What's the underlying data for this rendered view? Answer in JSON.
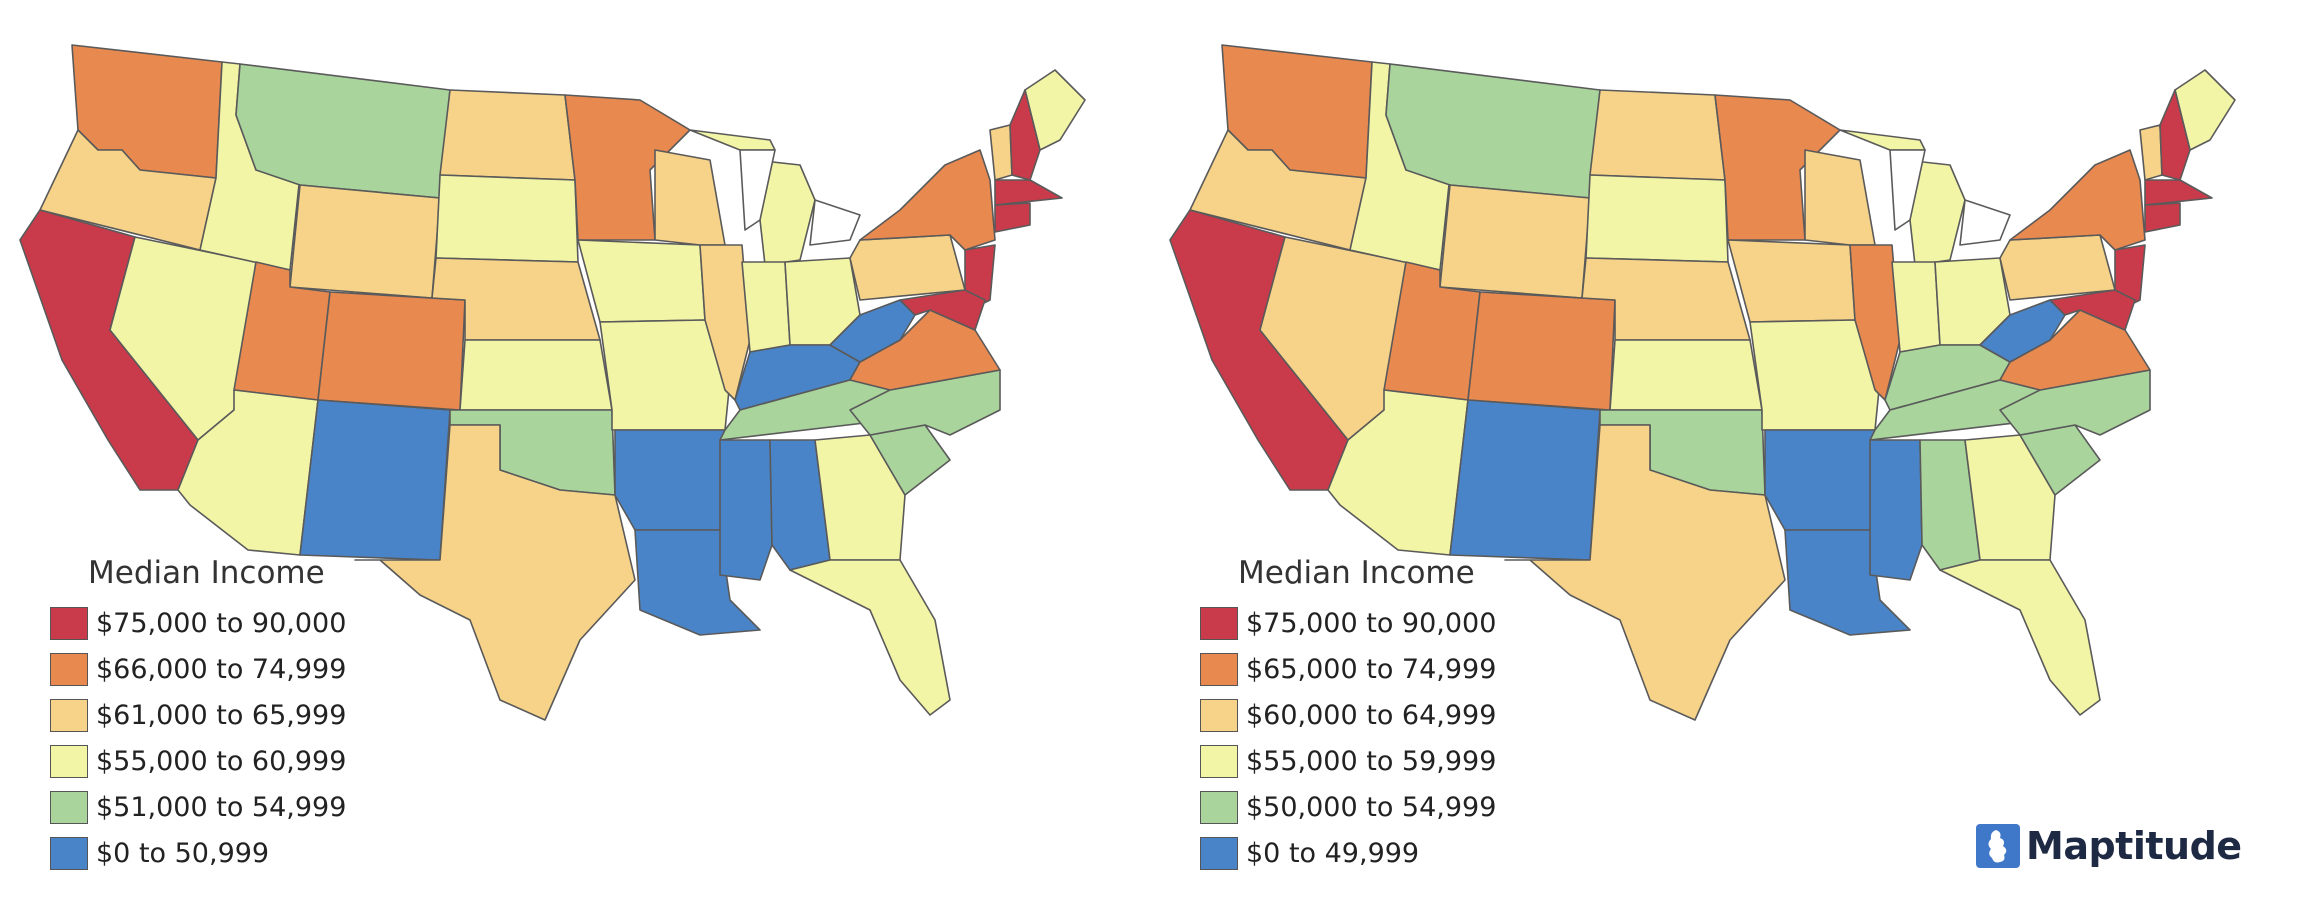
{
  "maps": [
    {
      "legend": {
        "title": "Median Income",
        "classes": [
          {
            "label": "$75,000 to 90,000",
            "color": "#c93b4a"
          },
          {
            "label": "$66,000 to 74,999",
            "color": "#e8894f"
          },
          {
            "label": "$61,000 to 65,999",
            "color": "#f6d389"
          },
          {
            "label": "$55,000 to 60,999",
            "color": "#f3f5a6"
          },
          {
            "label": "$51,000 to 54,999",
            "color": "#a9d49c"
          },
          {
            "label": "$0 to 50,999",
            "color": "#4a84c8"
          }
        ]
      },
      "states": {
        "WA": 1,
        "OR": 2,
        "CA": 0,
        "NV": 3,
        "ID": 3,
        "MT": 4,
        "WY": 2,
        "UT": 1,
        "AZ": 3,
        "CO": 1,
        "NM": 5,
        "ND": 2,
        "SD": 3,
        "NE": 2,
        "KS": 3,
        "OK": 4,
        "TX": 2,
        "MN": 1,
        "IA": 3,
        "MO": 3,
        "AR": 5,
        "LA": 5,
        "WI": 2,
        "IL": 2,
        "MI": 3,
        "IN": 3,
        "OH": 3,
        "KY": 5,
        "TN": 4,
        "MS": 5,
        "AL": 5,
        "GA": 3,
        "FL": 3,
        "SC": 4,
        "NC": 4,
        "VA": 1,
        "WV": 5,
        "PA": 2,
        "NY": 1,
        "ME": 3,
        "VT": 2,
        "NH": 0,
        "MA": 0,
        "CT": 0,
        "NJ": 0,
        "MD": 0
      }
    },
    {
      "legend": {
        "title": "Median Income",
        "classes": [
          {
            "label": "$75,000 to 90,000",
            "color": "#c93b4a"
          },
          {
            "label": "$65,000 to 74,999",
            "color": "#e8894f"
          },
          {
            "label": "$60,000 to 64,999",
            "color": "#f6d389"
          },
          {
            "label": "$55,000 to 59,999",
            "color": "#f3f5a6"
          },
          {
            "label": "$50,000 to 54,999",
            "color": "#a9d49c"
          },
          {
            "label": "$0 to 49,999",
            "color": "#4a84c8"
          }
        ]
      },
      "states": {
        "WA": 1,
        "OR": 2,
        "CA": 0,
        "NV": 2,
        "ID": 3,
        "MT": 4,
        "WY": 2,
        "UT": 1,
        "AZ": 3,
        "CO": 1,
        "NM": 5,
        "ND": 2,
        "SD": 3,
        "NE": 2,
        "KS": 3,
        "OK": 4,
        "TX": 2,
        "MN": 1,
        "IA": 2,
        "MO": 3,
        "AR": 5,
        "LA": 5,
        "WI": 2,
        "IL": 1,
        "MI": 3,
        "IN": 3,
        "OH": 3,
        "KY": 4,
        "TN": 4,
        "MS": 5,
        "AL": 4,
        "GA": 3,
        "FL": 3,
        "SC": 4,
        "NC": 4,
        "VA": 1,
        "WV": 5,
        "PA": 2,
        "NY": 1,
        "ME": 3,
        "VT": 2,
        "NH": 0,
        "MA": 0,
        "CT": 0,
        "NJ": 0,
        "MD": 0
      }
    }
  ],
  "logo": {
    "text": "Maptitude",
    "icon": "maptitude-logo-icon",
    "color": "#3f78c8"
  }
}
